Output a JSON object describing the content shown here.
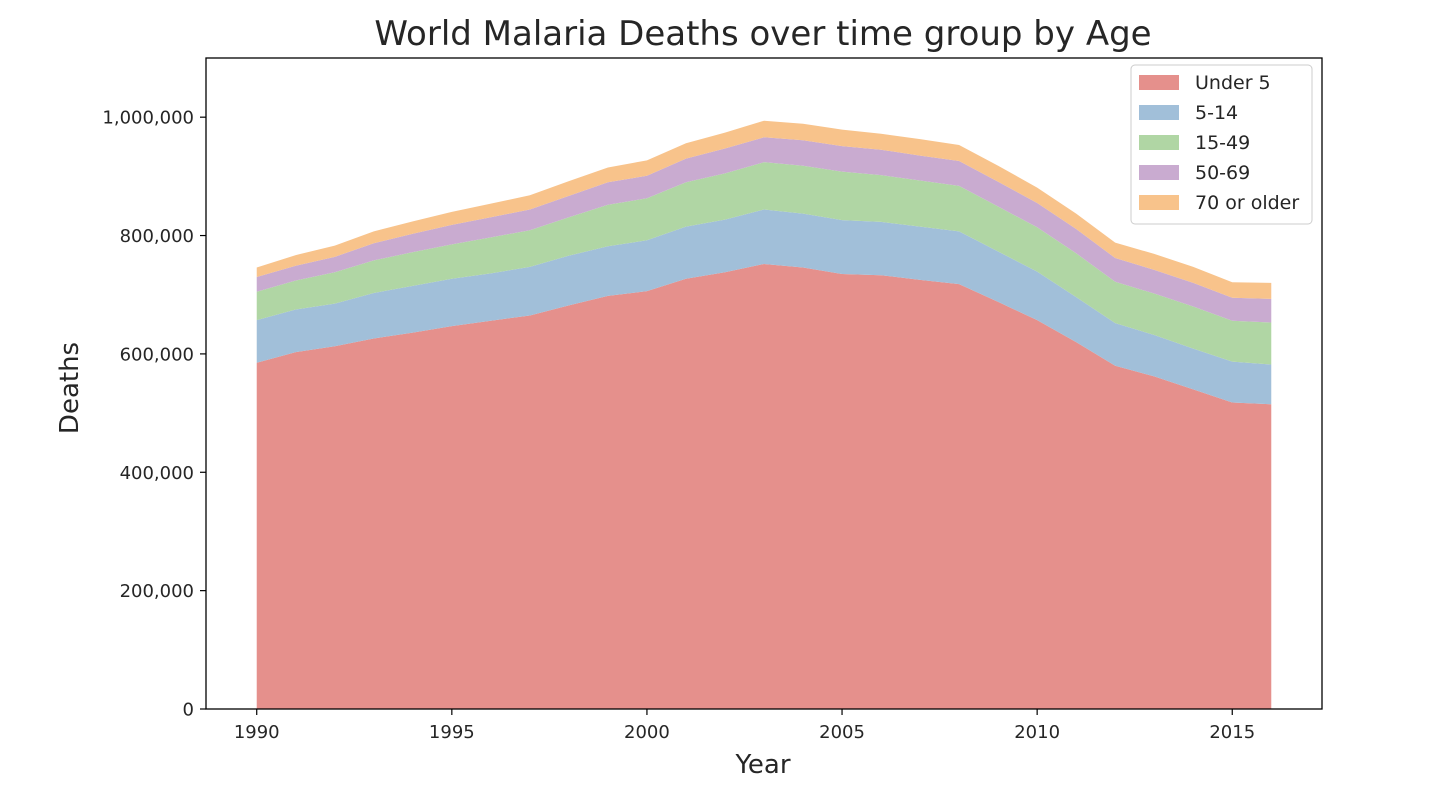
{
  "chart_data": {
    "type": "area",
    "stacked": true,
    "title": "World Malaria Deaths over time group by Age",
    "xlabel": "Year",
    "ylabel": "Deaths",
    "xlim": [
      1988.7,
      2017.3
    ],
    "ylim": [
      0,
      1100000
    ],
    "xticks": [
      1990,
      1995,
      2000,
      2005,
      2010,
      2015
    ],
    "xtick_labels": [
      "1990",
      "1995",
      "2000",
      "2005",
      "2010",
      "2015"
    ],
    "yticks": [
      0,
      200000,
      400000,
      600000,
      800000,
      1000000
    ],
    "ytick_labels": [
      "0",
      "200,000",
      "400,000",
      "600,000",
      "800,000",
      "1,000,000"
    ],
    "grid": false,
    "legend_position": "top-right",
    "x": [
      1990,
      1991,
      1992,
      1993,
      1994,
      1995,
      1996,
      1997,
      1998,
      1999,
      2000,
      2001,
      2002,
      2003,
      2004,
      2005,
      2006,
      2007,
      2008,
      2009,
      2010,
      2011,
      2012,
      2013,
      2014,
      2015,
      2016
    ],
    "series": [
      {
        "name": "Under 5",
        "color": "#e5908c",
        "values": [
          585000,
          603000,
          613000,
          626000,
          636000,
          647000,
          656000,
          665000,
          682000,
          698000,
          706000,
          727000,
          738000,
          752000,
          746000,
          735000,
          733000,
          725000,
          718000,
          688000,
          657000,
          620000,
          580000,
          562000,
          540000,
          518000,
          515000
        ]
      },
      {
        "name": "5-14",
        "color": "#a1bfd9",
        "values": [
          72000,
          72000,
          72000,
          77000,
          79000,
          80000,
          80000,
          82000,
          84000,
          84000,
          86000,
          88000,
          89000,
          92000,
          91000,
          91000,
          90000,
          90000,
          89000,
          85000,
          82000,
          76000,
          72000,
          70000,
          69000,
          69000,
          67000
        ]
      },
      {
        "name": "15-49",
        "color": "#b0d6a4",
        "values": [
          48000,
          49000,
          53000,
          55000,
          57000,
          58000,
          61000,
          62000,
          65000,
          70000,
          71000,
          75000,
          78000,
          80000,
          81000,
          82000,
          79000,
          78000,
          77000,
          76000,
          75000,
          74000,
          70000,
          70000,
          71000,
          69000,
          71000
        ]
      },
      {
        "name": "50-69",
        "color": "#c9abd0",
        "values": [
          25000,
          25000,
          26000,
          29000,
          31000,
          33000,
          34000,
          35000,
          36000,
          38000,
          38000,
          40000,
          42000,
          42000,
          43000,
          43000,
          43000,
          42000,
          42000,
          42000,
          41000,
          41000,
          40000,
          40000,
          40000,
          39000,
          40000
        ]
      },
      {
        "name": "70 or older",
        "color": "#f8c38b",
        "values": [
          16000,
          18000,
          19000,
          20000,
          21000,
          22000,
          23000,
          24000,
          25000,
          25000,
          26000,
          26000,
          27000,
          28000,
          28000,
          28000,
          27000,
          28000,
          27000,
          27000,
          26000,
          26000,
          26000,
          27000,
          27000,
          26000,
          27000
        ]
      }
    ]
  }
}
